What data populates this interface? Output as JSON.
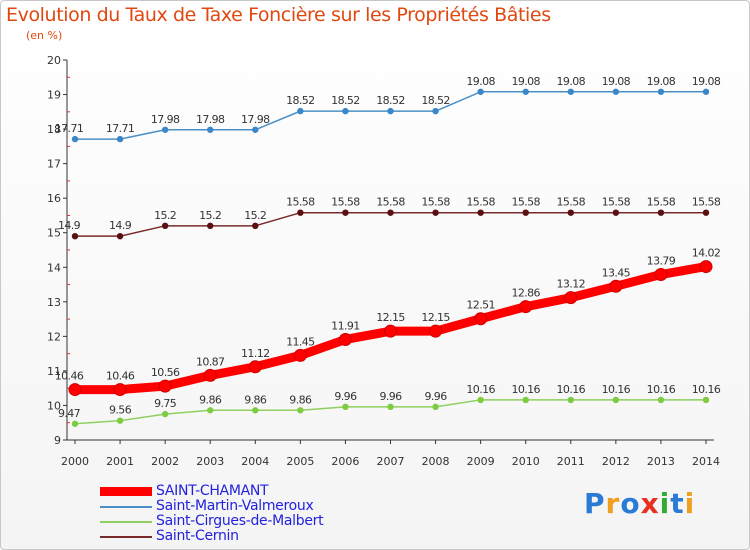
{
  "title": "Evolution du Taux de Taxe Foncière sur les Propriétés Bâties",
  "unit_label": "(en %)",
  "brand": {
    "text": "Proxiti",
    "letter_colors": [
      "#2a7bd6",
      "#f0a020",
      "#2a7bd6",
      "#e83020",
      "#33aa33",
      "#2a7bd6",
      "#f0a020"
    ]
  },
  "chart_data": {
    "type": "line",
    "x": [
      "2000",
      "2001",
      "2002",
      "2003",
      "2004",
      "2005",
      "2006",
      "2007",
      "2008",
      "2009",
      "2010",
      "2011",
      "2012",
      "2013",
      "2014"
    ],
    "ylim": [
      9,
      20
    ],
    "yticks": [
      9,
      10,
      11,
      12,
      13,
      14,
      15,
      16,
      17,
      18,
      19,
      20
    ],
    "grid": false,
    "legend_position": "bottom-left",
    "series": [
      {
        "name": "Saint-Martin-Valmeroux",
        "color": "#4a90c8",
        "point_color": "#3a86c6",
        "width": 1.5,
        "values": [
          17.71,
          17.71,
          17.98,
          17.98,
          17.98,
          18.52,
          18.52,
          18.52,
          18.52,
          19.08,
          19.08,
          19.08,
          19.08,
          19.08,
          19.08
        ],
        "labels": [
          "17.71",
          "17.71",
          "17.98",
          "17.98",
          "17.98",
          "18.52",
          "18.52",
          "18.52",
          "18.52",
          "19.08",
          "19.08",
          "19.08",
          "19.08",
          "19.08",
          "19.08"
        ]
      },
      {
        "name": "Saint-Cernin",
        "color": "#7a2a2a",
        "point_color": "#5a1010",
        "width": 1.5,
        "values": [
          14.9,
          14.9,
          15.2,
          15.2,
          15.2,
          15.58,
          15.58,
          15.58,
          15.58,
          15.58,
          15.58,
          15.58,
          15.58,
          15.58,
          15.58
        ],
        "labels": [
          "14.9",
          "14.9",
          "15.2",
          "15.2",
          "15.2",
          "15.58",
          "15.58",
          "15.58",
          "15.58",
          "15.58",
          "15.58",
          "15.58",
          "15.58",
          "15.58",
          "15.58"
        ]
      },
      {
        "name": "SAINT-CHAMANT",
        "color": "#ff0000",
        "point_color": "#ff0000",
        "width": 9,
        "values": [
          10.46,
          10.46,
          10.56,
          10.87,
          11.12,
          11.45,
          11.91,
          12.15,
          12.15,
          12.51,
          12.86,
          13.12,
          13.45,
          13.79,
          14.02
        ],
        "labels": [
          "10.46",
          "10.46",
          "10.56",
          "10.87",
          "11.12",
          "11.45",
          "11.91",
          "12.15",
          "12.15",
          "12.51",
          "12.86",
          "13.12",
          "13.45",
          "13.79",
          "14.02"
        ]
      },
      {
        "name": "Saint-Cirgues-de-Malbert",
        "color": "#8fd060",
        "point_color": "#7ccb40",
        "width": 1.5,
        "values": [
          9.47,
          9.56,
          9.75,
          9.86,
          9.86,
          9.86,
          9.96,
          9.96,
          9.96,
          10.16,
          10.16,
          10.16,
          10.16,
          10.16,
          10.16
        ],
        "labels": [
          "9.47",
          "9.56",
          "9.75",
          "9.86",
          "9.86",
          "9.86",
          "9.96",
          "9.96",
          "9.96",
          "10.16",
          "10.16",
          "10.16",
          "10.16",
          "10.16",
          "10.16"
        ]
      }
    ],
    "legend": [
      {
        "name": "SAINT-CHAMANT",
        "color": "#ff0000",
        "thick": true
      },
      {
        "name": "Saint-Martin-Valmeroux",
        "color": "#4a90c8",
        "thick": false
      },
      {
        "name": "Saint-Cirgues-de-Malbert",
        "color": "#8fd060",
        "thick": false
      },
      {
        "name": "Saint-Cernin",
        "color": "#7a2a2a",
        "thick": false
      }
    ]
  }
}
